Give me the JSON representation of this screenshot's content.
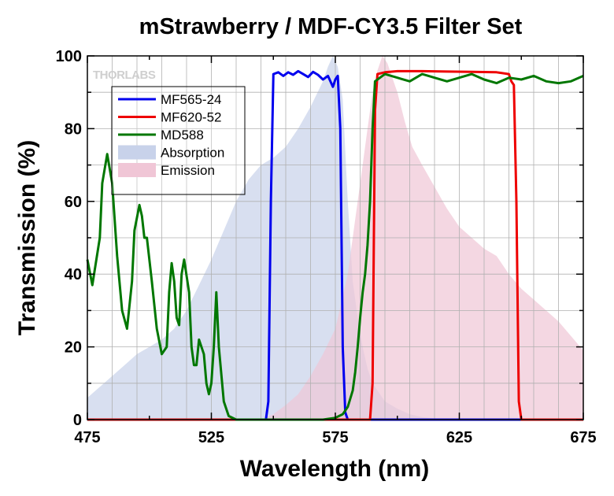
{
  "chart_data": {
    "type": "line",
    "title": "mStrawberry / MDF-CY3.5 Filter Set",
    "xlabel": "Wavelength (nm)",
    "ylabel": "Transmission (%)",
    "xlim": [
      475,
      675
    ],
    "ylim": [
      0,
      100
    ],
    "xticks": [
      475,
      525,
      575,
      625,
      675
    ],
    "yticks": [
      0,
      20,
      40,
      60,
      80,
      100
    ],
    "grid": true,
    "legend_position": "upper-left",
    "watermark": "THORLABS",
    "series": [
      {
        "name": "MF565-24",
        "kind": "line",
        "color": "#0000ee",
        "x": [
          475,
          547,
          548,
          549,
          550,
          552,
          554,
          556,
          558,
          560,
          562,
          564,
          566,
          568,
          570,
          572,
          574,
          575,
          576,
          577,
          578,
          579,
          580,
          675
        ],
        "y": [
          0,
          0,
          5,
          60,
          95,
          95.5,
          94.5,
          95.5,
          94.8,
          95.8,
          95,
          94.2,
          95.6,
          94.8,
          93.5,
          94.5,
          91.5,
          93.5,
          94.5,
          80,
          20,
          2,
          0,
          0
        ]
      },
      {
        "name": "MF620-52",
        "kind": "line",
        "color": "#ee0000",
        "x": [
          475,
          589,
          590,
          591,
          592,
          595,
          600,
          610,
          620,
          630,
          640,
          645,
          646,
          647,
          648,
          649,
          650,
          675
        ],
        "y": [
          0,
          0,
          10,
          85,
          95,
          95.5,
          95.8,
          95.8,
          95.7,
          95.6,
          95.5,
          95,
          93,
          92,
          60,
          5,
          0,
          0
        ]
      },
      {
        "name": "MD588",
        "kind": "line",
        "color": "#007700",
        "x": [
          475,
          477,
          480,
          481,
          483,
          485,
          487,
          489,
          491,
          493,
          494,
          496,
          497,
          498,
          499,
          501,
          503,
          505,
          507,
          508,
          509,
          510,
          511,
          512,
          513,
          514,
          516,
          517,
          518,
          519,
          520,
          522,
          523,
          524,
          525,
          526,
          527,
          528,
          530,
          532,
          535,
          540,
          545,
          550,
          555,
          560,
          565,
          570,
          575,
          578,
          580,
          582,
          583,
          584,
          585,
          586,
          587,
          588,
          589,
          590,
          591,
          593,
          595,
          600,
          605,
          610,
          615,
          620,
          625,
          630,
          635,
          640,
          645,
          650,
          655,
          660,
          665,
          670,
          675
        ],
        "y": [
          44,
          37,
          50,
          65,
          73,
          65,
          45,
          30,
          25,
          38,
          52,
          59,
          56,
          50,
          50,
          38,
          25,
          18,
          20,
          35,
          43,
          38,
          28,
          26,
          40,
          44,
          35,
          20,
          15,
          15,
          22,
          18,
          10,
          7,
          10,
          20,
          35,
          20,
          5,
          1,
          0,
          0,
          0,
          0,
          0,
          0,
          0,
          0,
          0.5,
          1.5,
          3.5,
          8,
          13,
          20,
          28,
          35,
          40,
          48,
          60,
          80,
          93,
          94,
          95,
          94,
          93,
          95,
          94,
          93,
          94,
          95,
          93.5,
          92.5,
          94,
          93.5,
          94.5,
          93,
          92.5,
          93,
          94.5
        ]
      },
      {
        "name": "Absorption",
        "kind": "area",
        "color": "#c8d2ea",
        "x": [
          475,
          480,
          485,
          490,
          495,
          500,
          505,
          510,
          515,
          520,
          525,
          530,
          535,
          540,
          545,
          550,
          555,
          560,
          565,
          570,
          572,
          574,
          576,
          578,
          580,
          582,
          584,
          586,
          588,
          590,
          592,
          595,
          600,
          605,
          610,
          615,
          620
        ],
        "y": [
          6,
          9,
          12,
          15,
          18,
          20,
          22,
          25,
          30,
          37,
          44,
          52,
          60,
          66,
          70,
          72,
          75,
          80,
          86,
          93,
          97,
          100,
          97,
          88,
          60,
          38,
          28,
          20,
          14,
          10,
          8,
          5,
          3,
          1.5,
          0.7,
          0.3,
          0
        ]
      },
      {
        "name": "Emission",
        "kind": "area",
        "color": "#f0c6d6",
        "x": [
          545,
          550,
          555,
          560,
          565,
          570,
          575,
          580,
          583,
          586,
          588,
          590,
          592,
          594,
          596,
          598,
          600,
          603,
          606,
          610,
          615,
          620,
          625,
          630,
          635,
          640,
          645,
          650,
          655,
          660,
          665,
          670,
          675
        ],
        "y": [
          0,
          1.5,
          4,
          7,
          12,
          18,
          25,
          40,
          55,
          70,
          80,
          90,
          96,
          100,
          98,
          94,
          90,
          82,
          75,
          70,
          64,
          58,
          53,
          50,
          47,
          45,
          40,
          36,
          33,
          30,
          27,
          23,
          19
        ]
      }
    ]
  }
}
